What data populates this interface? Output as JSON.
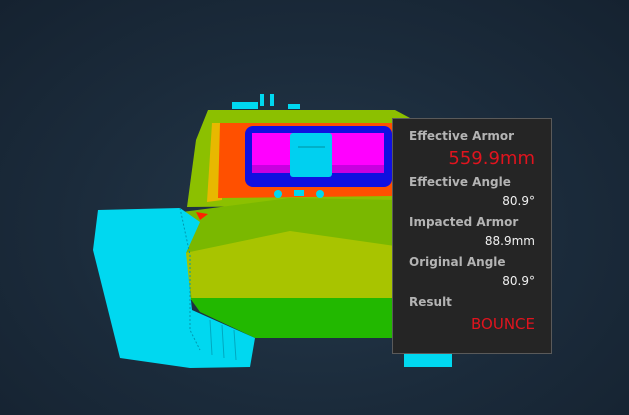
{
  "tooltip": {
    "effective_armor_label": "Effective Armor",
    "effective_armor_value": "559.9mm",
    "effective_angle_label": "Effective Angle",
    "effective_angle_value": "80.9°",
    "impacted_armor_label": "Impacted Armor",
    "impacted_armor_value": "88.9mm",
    "original_angle_label": "Original Angle",
    "original_angle_value": "80.9°",
    "result_label": "Result",
    "result_value": "BOUNCE"
  },
  "colors": {
    "highlight_red": "#e0141e",
    "armor_cyan": "#00d8f0",
    "armor_magenta": "#ff00ff",
    "armor_blue": "#1010e0",
    "armor_orange": "#ff5000",
    "armor_yellow_green": "#a8c400",
    "armor_green": "#7ab800",
    "armor_dark_green": "#22b800"
  }
}
